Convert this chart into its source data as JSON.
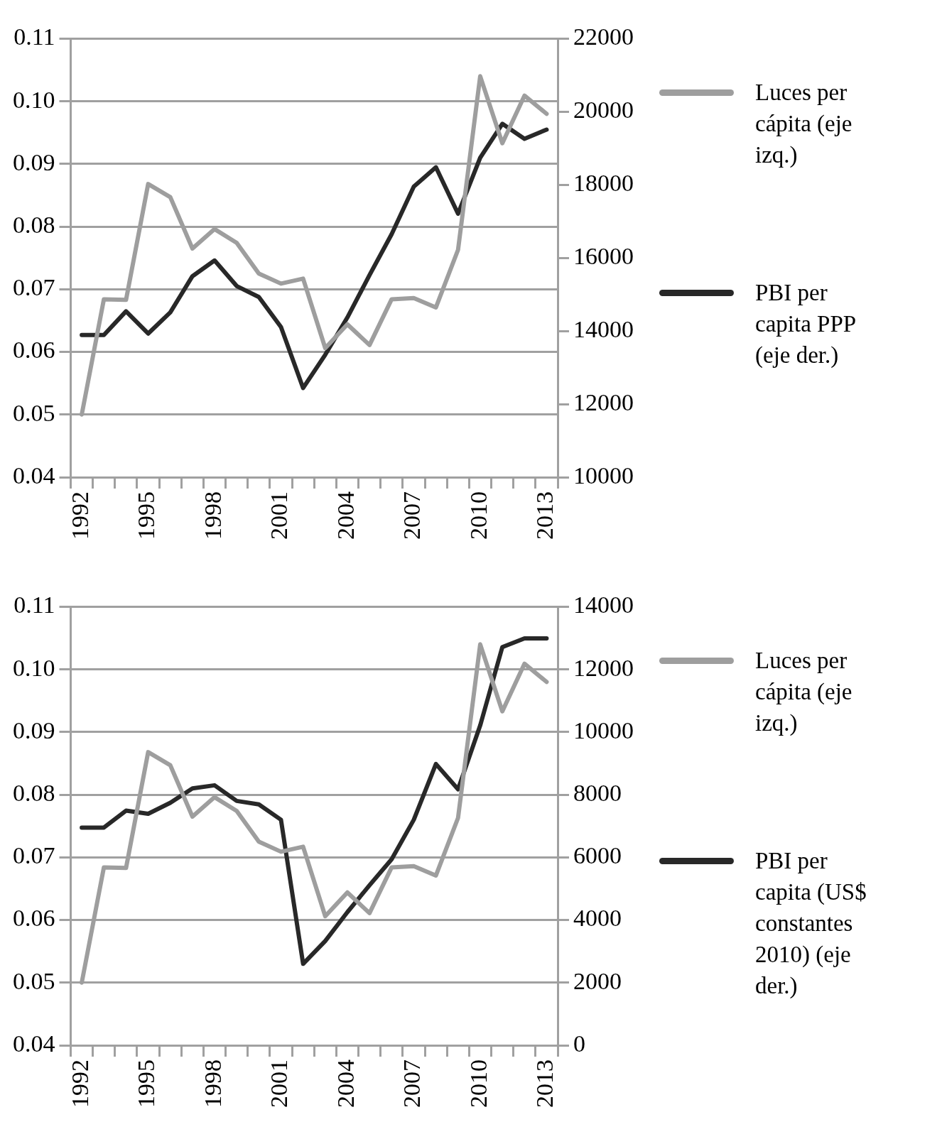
{
  "chart_data": [
    {
      "type": "line",
      "categories": [
        "1992",
        null,
        null,
        "1995",
        null,
        null,
        "1998",
        null,
        null,
        "2001",
        null,
        null,
        "2004",
        null,
        null,
        "2007",
        null,
        null,
        "2010",
        null,
        null,
        "2013"
      ],
      "series": [
        {
          "name": "Luces per cápita (eje izq.)",
          "color": "#9e9e9e",
          "values": [
            0.05,
            0.0684,
            0.0683,
            0.0868,
            0.0847,
            0.0765,
            0.0796,
            0.0774,
            0.0725,
            0.0709,
            0.0717,
            0.0606,
            0.0644,
            0.0611,
            0.0684,
            0.0686,
            0.0671,
            0.0763,
            0.104,
            0.0933,
            0.1009,
            0.098
          ]
        },
        {
          "name": "PBI per capita PPP (eje der.)",
          "color": "#282828",
          "axis": "y2",
          "values": [
            13890,
            13890,
            14540,
            13930,
            14510,
            15500,
            15930,
            15230,
            14930,
            14110,
            12440,
            13350,
            14370,
            15530,
            16650,
            17950,
            18480,
            17210,
            18740,
            19670,
            19260,
            19510
          ]
        }
      ],
      "ylim": [
        0.04,
        0.11
      ],
      "yticks": [
        0.04,
        0.05,
        0.06,
        0.07,
        0.08,
        0.09,
        {
          "value": 0.1,
          "label": "0.10"
        },
        0.11
      ],
      "y2lim": [
        10000,
        22000
      ],
      "y2ticks": [
        10000,
        12000,
        14000,
        16000,
        18000,
        20000,
        22000
      ],
      "grid": "y",
      "legend": "right",
      "marker": "none"
    },
    {
      "type": "line",
      "categories": [
        "1992",
        null,
        null,
        "1995",
        null,
        null,
        "1998",
        null,
        null,
        "2001",
        null,
        null,
        "2004",
        null,
        null,
        "2007",
        null,
        null,
        "2010",
        null,
        null,
        "2013"
      ],
      "series": [
        {
          "name": "Luces per cápita (eje izq.)",
          "color": "#9e9e9e",
          "values": [
            0.05,
            0.0684,
            0.0683,
            0.0868,
            0.0847,
            0.0765,
            0.0796,
            0.0774,
            0.0725,
            0.0709,
            0.0717,
            0.0606,
            0.0644,
            0.0611,
            0.0684,
            0.0686,
            0.0671,
            0.0763,
            0.104,
            0.0933,
            0.1009,
            0.098
          ]
        },
        {
          "name": "PBI per capita (US$ constantes 2010) (eje der.)",
          "color": "#282828",
          "axis": "y2",
          "values": [
            6950,
            6950,
            7490,
            7390,
            7740,
            8200,
            8300,
            7800,
            7690,
            7200,
            2600,
            3330,
            4250,
            5110,
            5940,
            7200,
            8980,
            8170,
            10210,
            12710,
            12990,
            12990
          ]
        }
      ],
      "ylim": [
        0.04,
        0.11
      ],
      "yticks": [
        0.04,
        0.05,
        0.06,
        0.07,
        0.08,
        0.09,
        {
          "value": 0.1,
          "label": "0.10"
        },
        0.11
      ],
      "y2lim": [
        0,
        14000
      ],
      "y2ticks": [
        0,
        2000,
        4000,
        6000,
        8000,
        10000,
        12000,
        14000
      ],
      "grid": "y",
      "legend": "right",
      "marker": "none"
    }
  ]
}
